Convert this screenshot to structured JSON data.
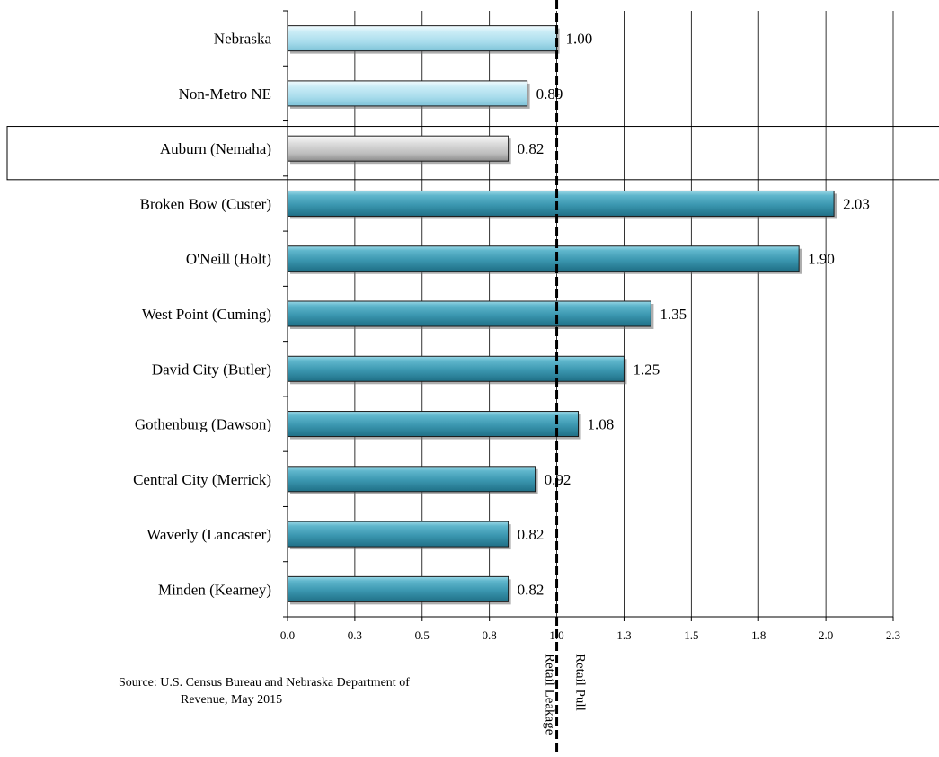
{
  "chart_data": {
    "type": "bar",
    "orientation": "horizontal",
    "categories": [
      "Nebraska",
      "Non-Metro NE",
      "Auburn (Nemaha)",
      "Broken Bow (Custer)",
      "O'Neill (Holt)",
      "West Point (Cuming)",
      "David City (Butler)",
      "Gothenburg (Dawson)",
      "Central City (Merrick)",
      "Waverly (Lancaster)",
      "Minden (Kearney)"
    ],
    "values": [
      1.0,
      0.89,
      0.82,
      2.03,
      1.9,
      1.35,
      1.25,
      1.08,
      0.92,
      0.82,
      0.82
    ],
    "value_labels": [
      "1.00",
      "0.89",
      "0.82",
      "2.03",
      "1.90",
      "1.35",
      "1.25",
      "1.08",
      "0.92",
      "0.82",
      "0.82"
    ],
    "bar_groups": [
      "state",
      "state",
      "highlight",
      "peer",
      "peer",
      "peer",
      "peer",
      "peer",
      "peer",
      "peer",
      "peer"
    ],
    "colors": {
      "state": "#a8dcec",
      "highlight": "#bfbfbf",
      "peer": "#3b97b0"
    },
    "xlim": [
      0,
      2.25
    ],
    "x_ticks": [
      0,
      0.25,
      0.5,
      0.75,
      1.0,
      1.25,
      1.5,
      1.75,
      2.0,
      2.25
    ],
    "x_tick_labels": [
      "0.0",
      "0.3",
      "0.5",
      "0.8",
      "1.0",
      "1.3",
      "1.5",
      "1.8",
      "2.0",
      "2.3"
    ],
    "grid": "vertical",
    "reference_line": {
      "x": 1.0,
      "style": "dashed",
      "left_label": "Retail Leakage",
      "right_label": "Retail Pull"
    },
    "highlight_category": "Auburn (Nemaha)",
    "source": {
      "line1": "Source: U.S. Census Bureau and Nebraska Department of",
      "line2": "Revenue, May 2015"
    }
  }
}
